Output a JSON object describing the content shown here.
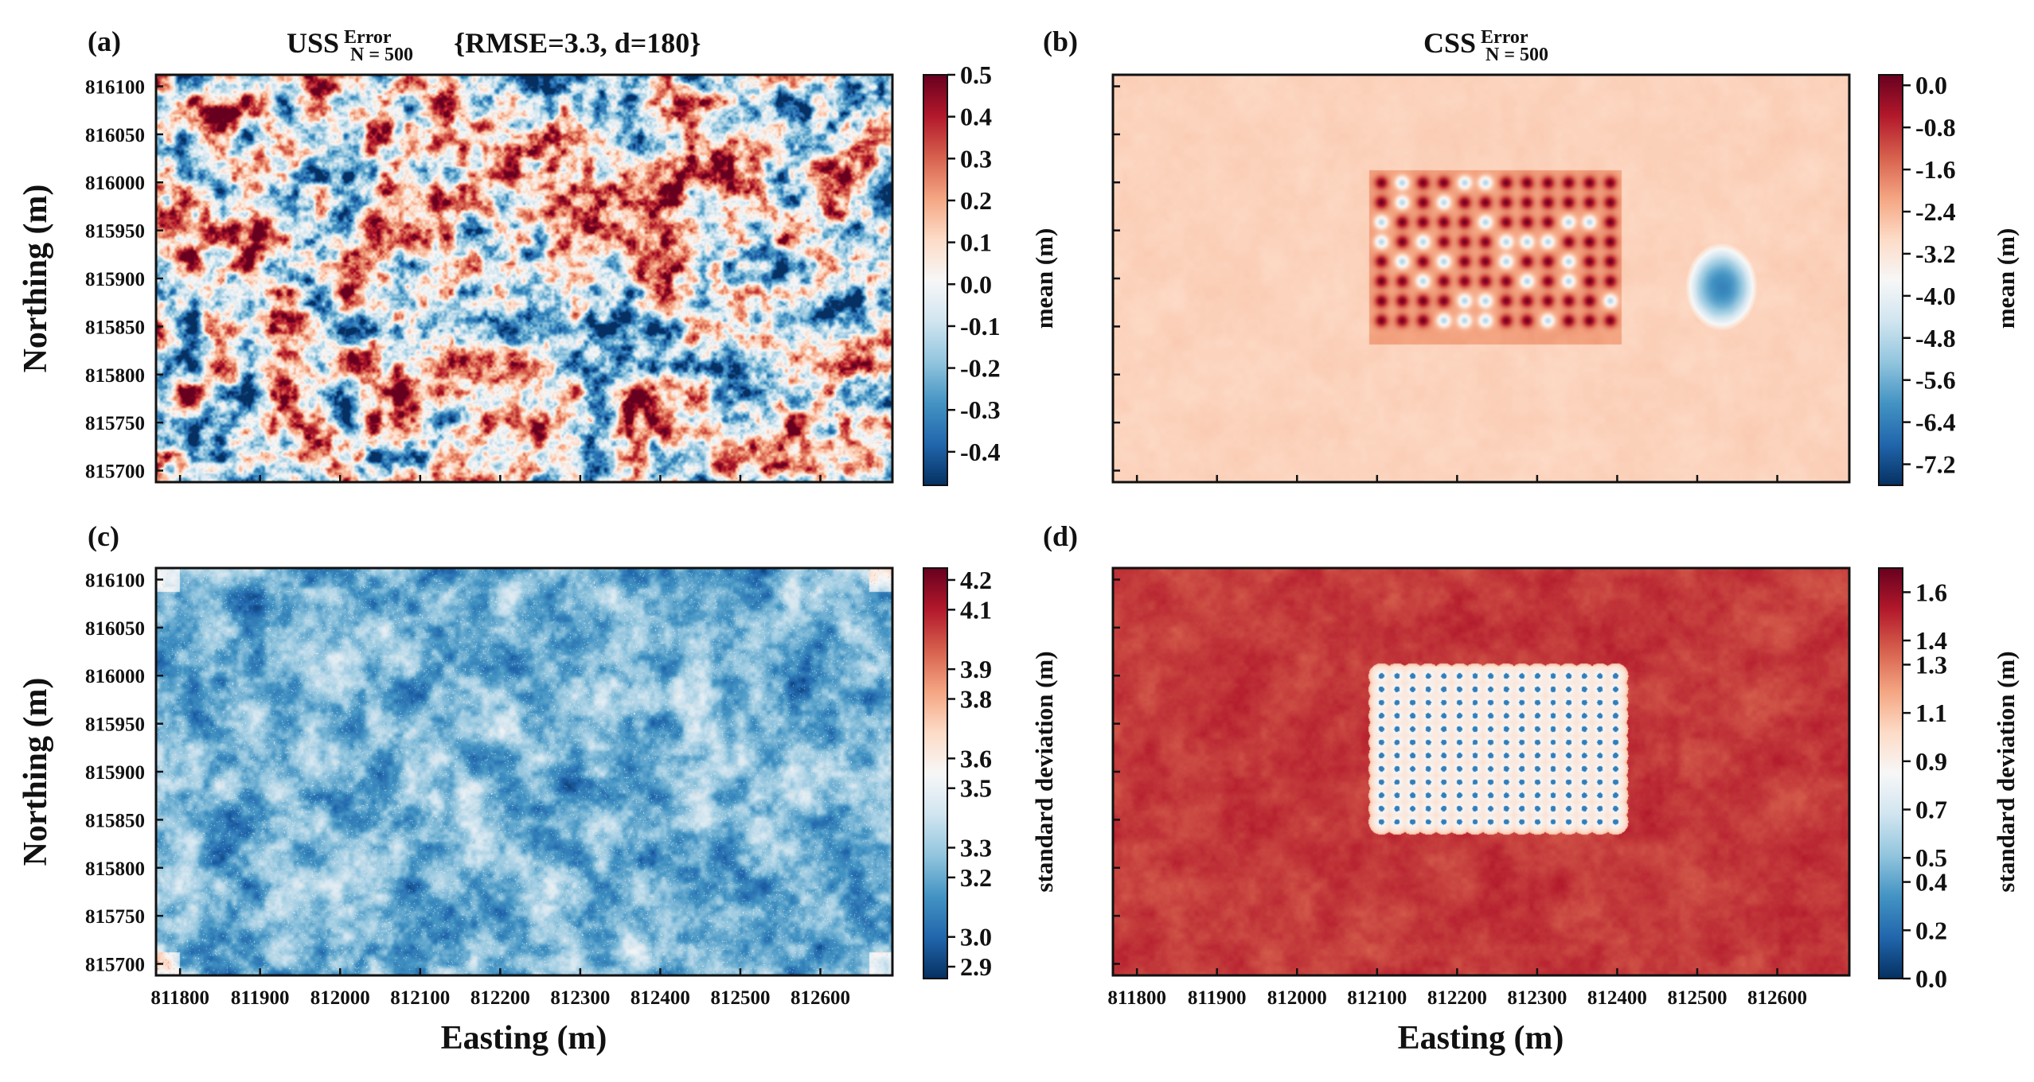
{
  "figure": {
    "panels": [
      {
        "id": "a",
        "label": "(a)",
        "title_main": "USS",
        "title_sup": "Error",
        "title_sub": "N = 500",
        "title_tail": "{RMSE=3.3, d=180}",
        "colorbar_label": "mean (m)",
        "colorbar_ticks": [
          "0.5",
          "0.4",
          "0.3",
          "0.2",
          "0.1",
          "0.0",
          "-0.1",
          "-0.2",
          "-0.3",
          "-0.4"
        ],
        "show_xticklabels": false,
        "show_yticklabels": true
      },
      {
        "id": "b",
        "label": "(b)",
        "title_main": "CSS",
        "title_sup": "Error",
        "title_sub": "N = 500",
        "title_tail": "",
        "colorbar_label": "mean (m)",
        "colorbar_ticks": [
          "0.0",
          "-0.8",
          "-1.6",
          "-2.4",
          "-3.2",
          "-4.0",
          "-4.8",
          "-5.6",
          "-6.4",
          "-7.2"
        ],
        "show_xticklabels": false,
        "show_yticklabels": false
      },
      {
        "id": "c",
        "label": "(c)",
        "title_main": "",
        "title_sup": "",
        "title_sub": "",
        "title_tail": "",
        "colorbar_label": "standard deviation (m)",
        "colorbar_ticks": [
          "4.2",
          "4.1",
          "3.9",
          "3.8",
          "3.6",
          "3.5",
          "3.3",
          "3.2",
          "3.0",
          "2.9"
        ],
        "show_xticklabels": true,
        "show_yticklabels": true
      },
      {
        "id": "d",
        "label": "(d)",
        "title_main": "",
        "title_sup": "",
        "title_sub": "",
        "title_tail": "",
        "colorbar_label": "standard deviation (m)",
        "colorbar_ticks": [
          "1.6",
          "1.4",
          "1.3",
          "1.1",
          "0.9",
          "0.7",
          "0.5",
          "0.4",
          "0.2",
          "0.0"
        ],
        "show_xticklabels": true,
        "show_yticklabels": false
      }
    ],
    "x_axis_label": "Easting (m)",
    "y_axis_label": "Northing (m)",
    "x_tick_labels": [
      "811800",
      "811900",
      "812000",
      "812100",
      "812200",
      "812300",
      "812400",
      "812500",
      "812600"
    ],
    "y_tick_labels": [
      "816100",
      "816050",
      "816000",
      "815950",
      "815900",
      "815850",
      "815800",
      "815750",
      "815700"
    ],
    "colors": {
      "red": "#67001f",
      "white": "#f7f7f7",
      "blue": "#053061"
    }
  },
  "chart_data": [
    {
      "type": "heatmap",
      "title": "USS Error N=500 {RMSE=3.3, d=180}",
      "panel": "(a)",
      "statistic": "mean",
      "xlabel": "",
      "ylabel": "Northing (m)",
      "xlim": [
        811770,
        812690
      ],
      "ylim": [
        815688,
        816112
      ],
      "color_range": [
        -0.48,
        0.5
      ],
      "colormap": "RdBu_r",
      "colorbar_label": "mean (m)",
      "description_values": {
        "field": "random_noise",
        "typical_range": [
          -0.3,
          0.4
        ]
      }
    },
    {
      "type": "heatmap",
      "title": "CSS Error N=500",
      "panel": "(b)",
      "statistic": "mean",
      "xlabel": "",
      "ylabel": "",
      "xlim": [
        811770,
        812690
      ],
      "ylim": [
        815688,
        816112
      ],
      "color_range": [
        -7.6,
        0.2
      ],
      "colormap": "RdBu_r",
      "colorbar_label": "mean (m)",
      "background_value": -2.8,
      "conditioning_grid": {
        "x_start": 812105,
        "x_step": 26,
        "x_count": 12,
        "y_start": 816000,
        "y_step": 20.5,
        "y_count": 8
      }
    },
    {
      "type": "heatmap",
      "panel": "(c)",
      "statistic": "standard deviation",
      "xlabel": "Easting (m)",
      "ylabel": "Northing (m)",
      "xlim": [
        811770,
        812690
      ],
      "ylim": [
        815688,
        816112
      ],
      "color_range": [
        2.86,
        4.24
      ],
      "colormap": "RdBu_r",
      "colorbar_label": "standard deviation (m)",
      "typical_value": 3.35
    },
    {
      "type": "heatmap",
      "panel": "(d)",
      "statistic": "standard deviation",
      "xlabel": "Easting (m)",
      "ylabel": "",
      "xlim": [
        811770,
        812690
      ],
      "ylim": [
        815688,
        816112
      ],
      "color_range": [
        0.0,
        1.7
      ],
      "colormap": "RdBu_r",
      "colorbar_label": "standard deviation (m)",
      "background_value": 1.45,
      "conditioning_grid": {
        "x_start": 812105,
        "x_step": 19.5,
        "x_count": 16,
        "y_start": 816000,
        "y_step": 13.8,
        "y_count": 12
      }
    }
  ]
}
